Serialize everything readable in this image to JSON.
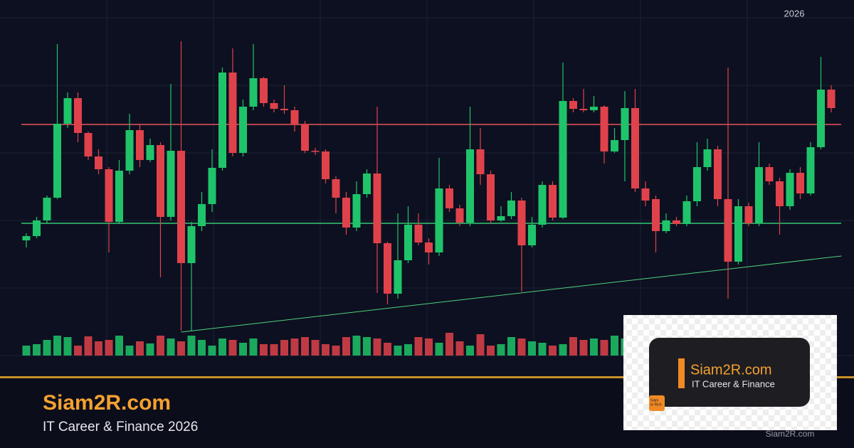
{
  "chart_data": {
    "type": "candlestick",
    "open": [
      162,
      168,
      190,
      222,
      326,
      362,
      313,
      280,
      262,
      188,
      260,
      317,
      275,
      296,
      195,
      288,
      130,
      182,
      213,
      264,
      398,
      285,
      350,
      390,
      355,
      347,
      345,
      325,
      288,
      287,
      248,
      222,
      180,
      227,
      256,
      158,
      87,
      134,
      184,
      159,
      145,
      235,
      207,
      187,
      290,
      255,
      190,
      196,
      218,
      155,
      184,
      240,
      194,
      358,
      347,
      345,
      350,
      287,
      303,
      348,
      235,
      220,
      175,
      190,
      185,
      217,
      265,
      290,
      220,
      132,
      210,
      186,
      265,
      245,
      210,
      257,
      228,
      293,
      374
    ],
    "close": [
      168,
      190,
      222,
      326,
      362,
      313,
      280,
      262,
      188,
      260,
      317,
      275,
      296,
      195,
      288,
      130,
      182,
      213,
      264,
      398,
      285,
      350,
      390,
      355,
      347,
      345,
      325,
      288,
      287,
      248,
      222,
      180,
      227,
      256,
      158,
      87,
      134,
      184,
      159,
      145,
      235,
      207,
      187,
      290,
      255,
      190,
      196,
      218,
      155,
      184,
      240,
      194,
      358,
      347,
      345,
      350,
      287,
      303,
      348,
      235,
      218,
      175,
      190,
      185,
      217,
      265,
      290,
      220,
      132,
      210,
      186,
      265,
      245,
      210,
      257,
      228,
      293,
      374,
      348
    ],
    "high": [
      172,
      195,
      225,
      438,
      370,
      370,
      315,
      290,
      265,
      275,
      340,
      325,
      305,
      300,
      382,
      442,
      188,
      230,
      290,
      405,
      432,
      360,
      438,
      392,
      360,
      380,
      350,
      330,
      292,
      290,
      252,
      230,
      245,
      262,
      350,
      160,
      200,
      210,
      200,
      165,
      278,
      240,
      212,
      350,
      320,
      260,
      210,
      230,
      222,
      195,
      245,
      245,
      412,
      362,
      375,
      365,
      352,
      320,
      372,
      375,
      245,
      225,
      200,
      195,
      225,
      300,
      305,
      295,
      405,
      220,
      215,
      300,
      270,
      250,
      262,
      265,
      300,
      420,
      380
    ],
    "low": [
      152,
      165,
      185,
      220,
      320,
      300,
      275,
      255,
      145,
      185,
      255,
      265,
      272,
      110,
      190,
      35,
      35,
      175,
      202,
      260,
      280,
      280,
      345,
      350,
      342,
      340,
      315,
      285,
      282,
      242,
      200,
      170,
      175,
      222,
      88,
      72,
      80,
      130,
      155,
      128,
      140,
      202,
      182,
      182,
      240,
      185,
      188,
      192,
      90,
      152,
      180,
      190,
      192,
      342,
      342,
      342,
      270,
      285,
      245,
      230,
      210,
      145,
      172,
      182,
      182,
      210,
      260,
      210,
      80,
      128,
      182,
      182,
      240,
      170,
      205,
      220,
      225,
      290,
      342
    ],
    "volume": [
      14,
      16,
      22,
      28,
      26,
      14,
      27,
      20,
      22,
      28,
      14,
      20,
      17,
      28,
      24,
      20,
      28,
      22,
      14,
      24,
      22,
      18,
      24,
      16,
      16,
      22,
      24,
      26,
      22,
      16,
      14,
      26,
      28,
      26,
      24,
      18,
      14,
      16,
      26,
      24,
      18,
      32,
      20,
      14,
      30,
      14,
      16,
      26,
      24,
      20,
      18,
      14,
      16,
      26,
      22,
      24,
      22,
      28,
      24,
      30,
      24,
      30,
      28,
      26,
      24,
      18,
      20,
      22,
      30,
      28,
      26,
      24,
      18,
      22,
      14,
      28,
      24,
      20,
      26
    ],
    "up_color": "#1fc46a",
    "down_color": "#e0424b",
    "ylim": [
      0,
      500
    ],
    "levels": [
      {
        "value": 325,
        "color": "#e8525a"
      },
      {
        "value": 186,
        "color": "#35c873"
      }
    ],
    "trendline": {
      "from": [
        15,
        33
      ],
      "to": [
        79,
        140
      ],
      "color": "#4fd27e"
    },
    "year": "2026"
  },
  "branding": {
    "site": "Siam2R.com",
    "tagline": "IT Career & Finance 2026",
    "card": {
      "site": "Siam2R.com",
      "tagline": "IT Career & Finance",
      "logo": [
        "Siam",
        "to Rich"
      ],
      "footer": "Siam2R.com"
    }
  }
}
